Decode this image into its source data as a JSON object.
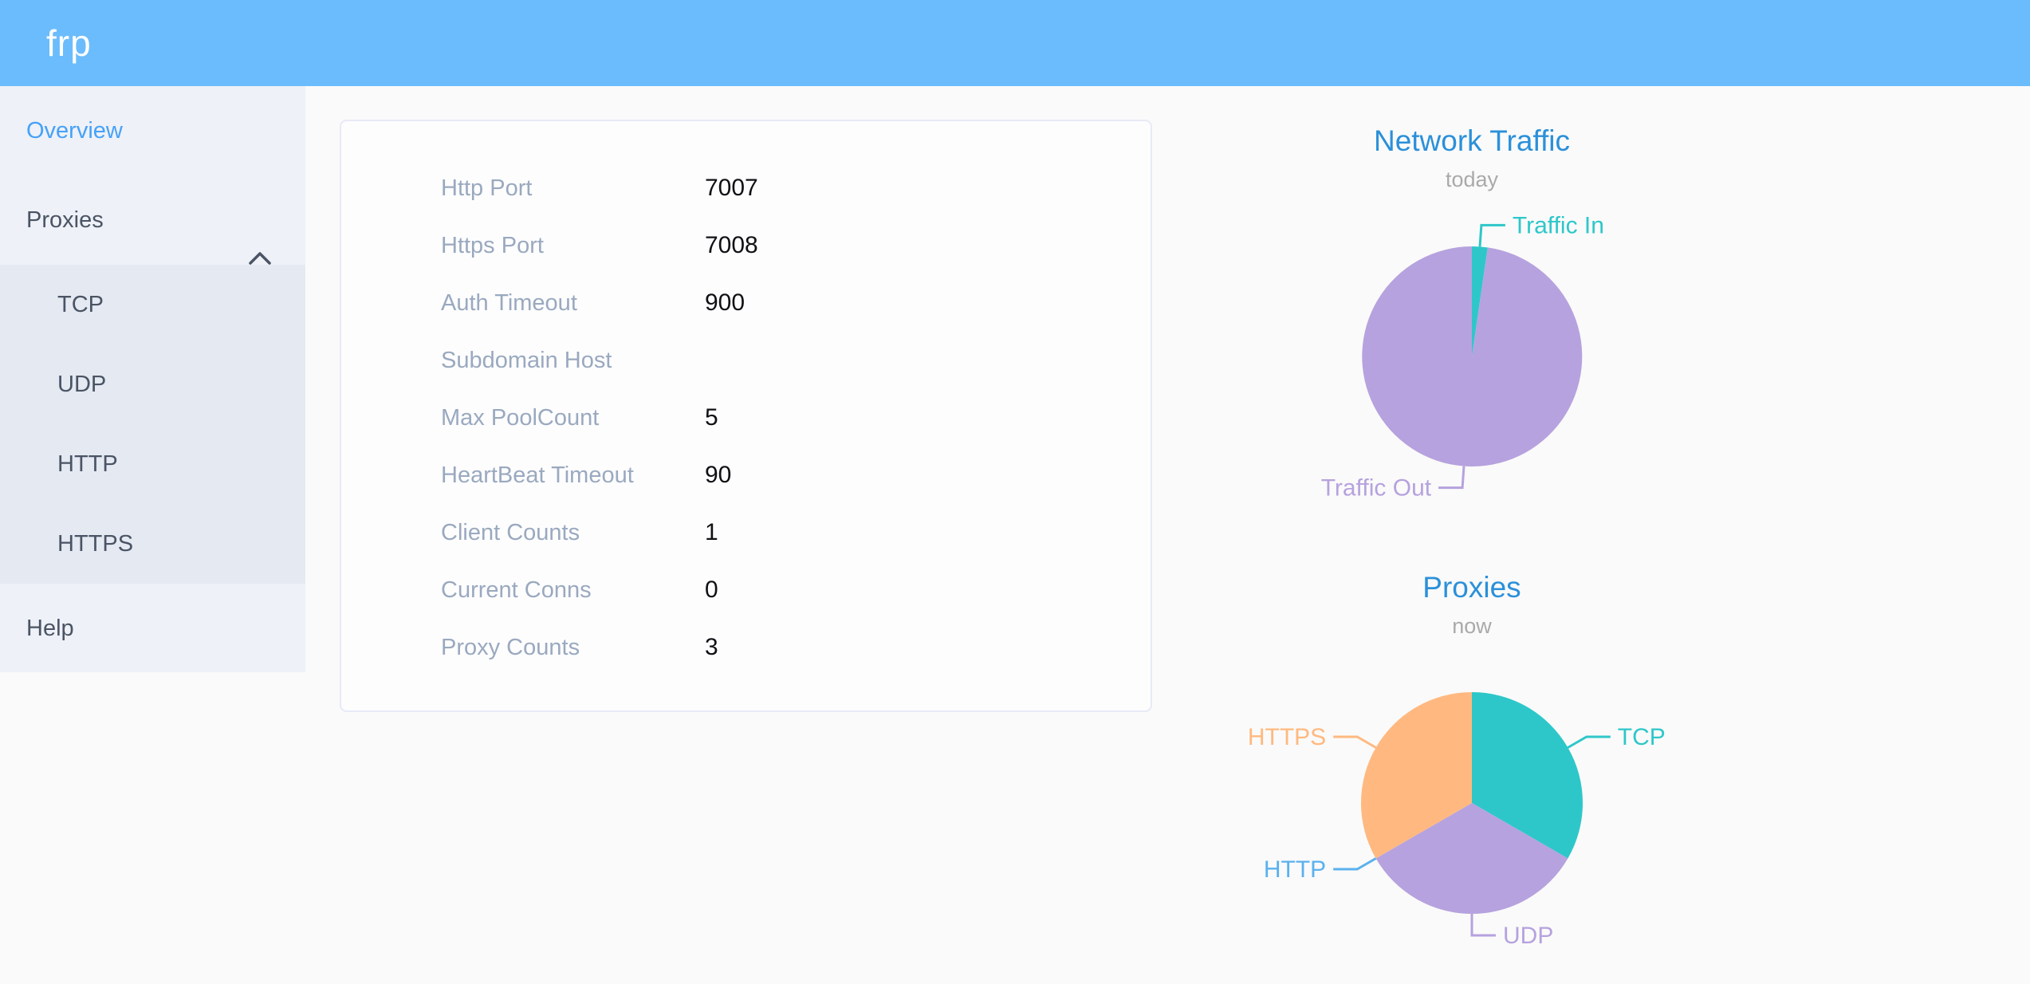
{
  "header": {
    "logo": "frp",
    "bg_color": "#6bbcfc"
  },
  "sidebar": {
    "overview": "Overview",
    "proxies": "Proxies",
    "submenu": {
      "tcp": "TCP",
      "udp": "UDP",
      "http": "HTTP",
      "https": "HTTPS"
    },
    "help": "Help",
    "active_item": "Overview",
    "active_color": "#47a1f8"
  },
  "overview_panel": {
    "rows": [
      {
        "label": "Http Port",
        "value": "7007"
      },
      {
        "label": "Https Port",
        "value": "7008"
      },
      {
        "label": "Auth Timeout",
        "value": "900"
      },
      {
        "label": "Subdomain Host",
        "value": ""
      },
      {
        "label": "Max PoolCount",
        "value": "5"
      },
      {
        "label": "HeartBeat Timeout",
        "value": "90"
      },
      {
        "label": "Client Counts",
        "value": "1"
      },
      {
        "label": "Current Conns",
        "value": "0"
      },
      {
        "label": "Proxy Counts",
        "value": "3"
      }
    ]
  },
  "chart_data": [
    {
      "type": "pie",
      "title": "Network Traffic",
      "subtitle": "today",
      "legend": "none",
      "label_position": "outside",
      "title_color": "#2b90d9",
      "slices": [
        {
          "label": "Traffic In",
          "value": 2.3,
          "unit": "percent-estimated",
          "color": "#2ec7c9"
        },
        {
          "label": "Traffic Out",
          "value": 97.7,
          "unit": "percent-estimated",
          "color": "#b6a2de"
        }
      ]
    },
    {
      "type": "pie",
      "title": "Proxies",
      "subtitle": "now",
      "legend": "none",
      "label_position": "outside",
      "title_color": "#2b90d9",
      "slices": [
        {
          "label": "TCP",
          "value": 1,
          "color": "#2ec7c9"
        },
        {
          "label": "UDP",
          "value": 1,
          "color": "#b6a2de"
        },
        {
          "label": "HTTP",
          "value": 0,
          "color": "#5ab1ef"
        },
        {
          "label": "HTTPS",
          "value": 1,
          "color": "#ffb980"
        }
      ]
    }
  ]
}
